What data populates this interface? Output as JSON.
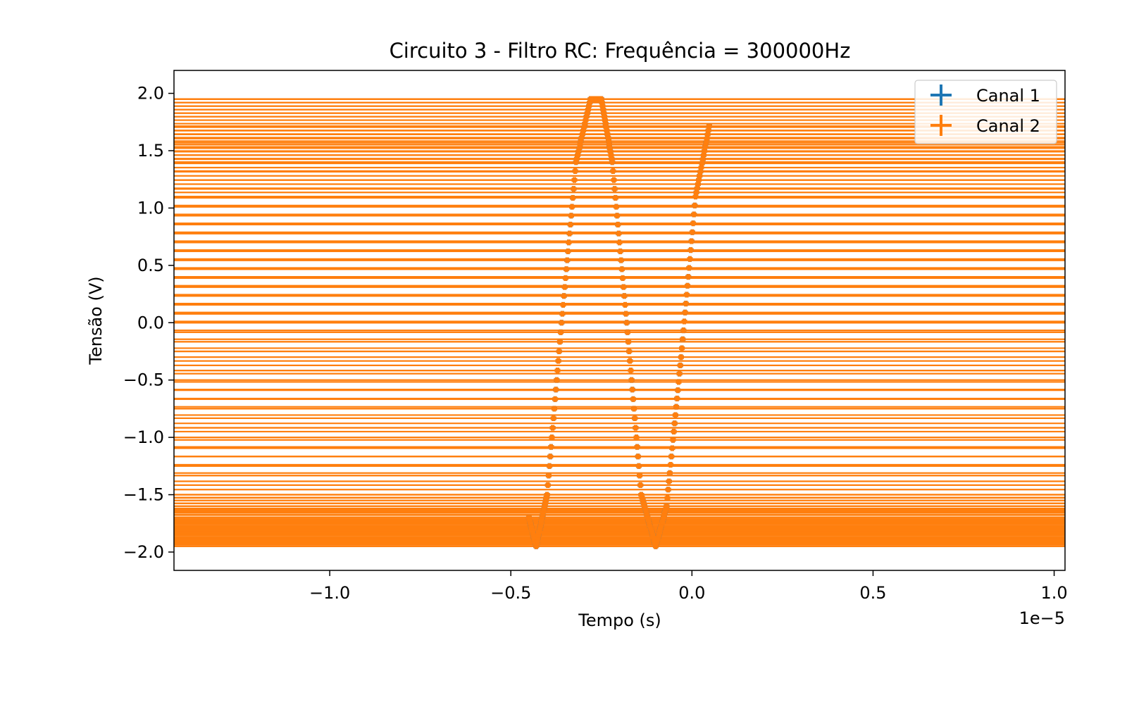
{
  "chart_data": {
    "type": "scatter",
    "title": "Circuito 3 - Filtro RC: Frequência = 300000Hz",
    "xlabel": "Tempo (s)",
    "ylabel": "Tensão (V)",
    "x_offset_text": "1e−5",
    "x_unit_scale": 1e-05,
    "xlim": [
      -1.43,
      1.03
    ],
    "ylim": [
      -2.16,
      2.2
    ],
    "xticks": [
      -1.0,
      -0.5,
      0.0,
      0.5,
      1.0
    ],
    "xtick_labels": [
      "−1.0",
      "−0.5",
      "0.0",
      "0.5",
      "1.0"
    ],
    "yticks": [
      2.0,
      1.5,
      1.0,
      0.5,
      0.0,
      -0.5,
      -1.0,
      -1.5,
      -2.0
    ],
    "ytick_labels": [
      "2.0",
      "1.5",
      "1.0",
      "0.5",
      "0.0",
      "−0.5",
      "−1.0",
      "−1.5",
      "−2.0"
    ],
    "grid": false,
    "legend_position": "top-right",
    "series": [
      {
        "name": "Canal 1",
        "color": "#1f77b4",
        "marker": "plus",
        "horizontal_error_bars": true,
        "x": [
          -4.5e-06,
          -4.3e-06,
          -4e-06,
          -3.6e-06,
          -3.2e-06,
          -2.8e-06,
          -2.5e-06,
          -2.2e-06,
          -1.8e-06,
          -1.4e-06,
          -1e-06,
          -7e-07,
          -3e-07,
          1e-07,
          5e-07
        ],
        "y": [
          -1.7,
          -1.95,
          -1.5,
          0.0,
          1.4,
          1.95,
          1.95,
          1.4,
          0.0,
          -1.5,
          -1.95,
          -1.6,
          -0.3,
          1.1,
          1.75
        ]
      },
      {
        "name": "Canal 2",
        "color": "#ff7f0e",
        "marker": "plus",
        "horizontal_error_bars": true,
        "x": [
          -4.5e-06,
          -4.3e-06,
          -4e-06,
          -3.6e-06,
          -3.2e-06,
          -2.8e-06,
          -2.5e-06,
          -2.2e-06,
          -1.8e-06,
          -1.4e-06,
          -1e-06,
          -7e-07,
          -3e-07,
          1e-07,
          5e-07
        ],
        "y": [
          -1.7,
          -1.95,
          -1.5,
          0.0,
          1.4,
          1.95,
          1.95,
          1.4,
          0.0,
          -1.5,
          -1.95,
          -1.6,
          -0.3,
          1.1,
          1.75
        ]
      }
    ]
  }
}
